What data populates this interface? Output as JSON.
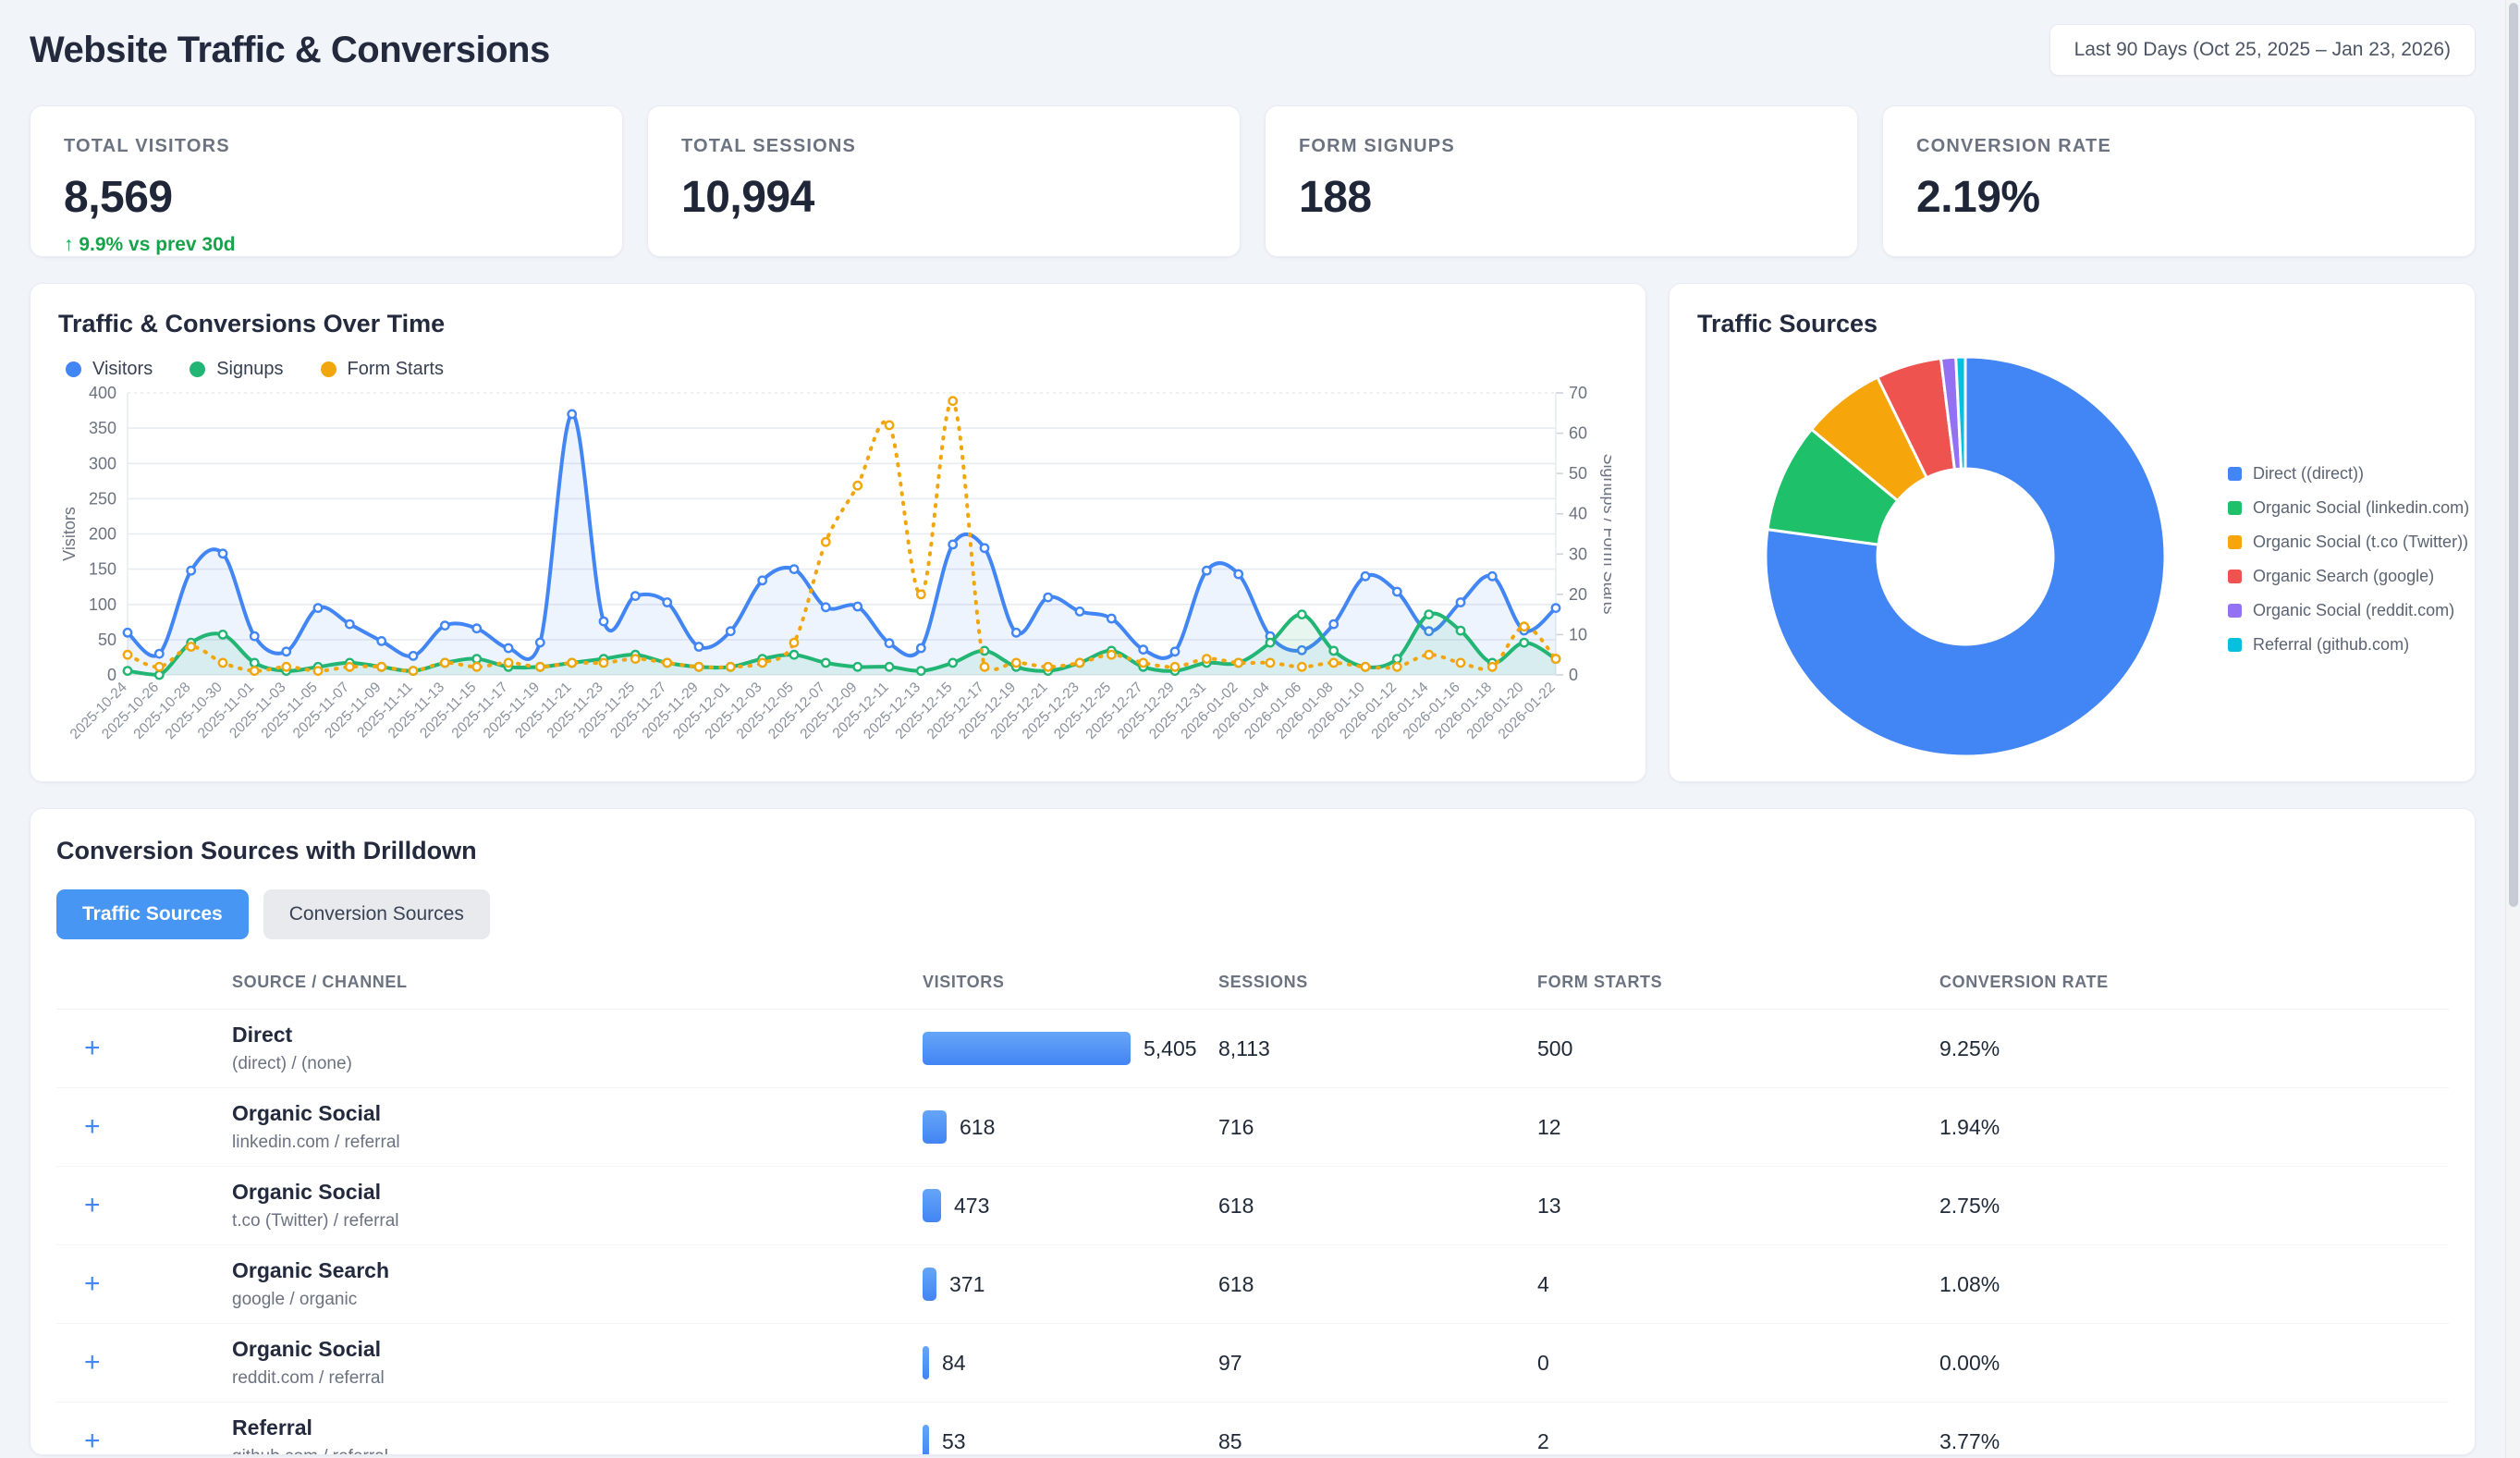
{
  "header": {
    "title": "Website Traffic & Conversions",
    "date_range": "Last 90 Days (Oct 25, 2025 – Jan 23, 2026)"
  },
  "kpis": [
    {
      "label": "TOTAL VISITORS",
      "value": "8,569",
      "delta": "↑ 9.9% vs prev 30d"
    },
    {
      "label": "TOTAL SESSIONS",
      "value": "10,994",
      "delta": ""
    },
    {
      "label": "FORM SIGNUPS",
      "value": "188",
      "delta": ""
    },
    {
      "label": "CONVERSION RATE",
      "value": "2.19%",
      "delta": ""
    }
  ],
  "chart_data": [
    {
      "type": "line",
      "title": "Traffic & Conversions Over Time",
      "ylabel_left": "Visitors",
      "ylabel_right": "Signups / Form Starts",
      "ylim_left": [
        0,
        400
      ],
      "ylim_right": [
        0,
        70
      ],
      "yticks_left": [
        0,
        50,
        100,
        150,
        200,
        250,
        300,
        350,
        400
      ],
      "yticks_right": [
        0,
        10,
        20,
        30,
        40,
        50,
        60,
        70
      ],
      "legend_position": "top",
      "grid": "horizontal",
      "x": [
        "2025-10-24",
        "2025-10-26",
        "2025-10-28",
        "2025-10-30",
        "2025-11-01",
        "2025-11-03",
        "2025-11-05",
        "2025-11-07",
        "2025-11-09",
        "2025-11-11",
        "2025-11-13",
        "2025-11-15",
        "2025-11-17",
        "2025-11-19",
        "2025-11-21",
        "2025-11-23",
        "2025-11-25",
        "2025-11-27",
        "2025-11-29",
        "2025-12-01",
        "2025-12-03",
        "2025-12-05",
        "2025-12-07",
        "2025-12-09",
        "2025-12-11",
        "2025-12-13",
        "2025-12-15",
        "2025-12-17",
        "2025-12-19",
        "2025-12-21",
        "2025-12-23",
        "2025-12-25",
        "2025-12-27",
        "2025-12-29",
        "2025-12-31",
        "2026-01-02",
        "2026-01-04",
        "2026-01-06",
        "2026-01-08",
        "2026-01-10",
        "2026-01-12",
        "2026-01-14",
        "2026-01-16",
        "2026-01-18",
        "2026-01-20",
        "2026-01-22"
      ],
      "series": [
        {
          "name": "Visitors",
          "axis": "left",
          "color": "#4285f4",
          "style": "solid",
          "values": [
            60,
            30,
            148,
            172,
            55,
            33,
            95,
            72,
            48,
            27,
            70,
            66,
            38,
            46,
            370,
            76,
            112,
            103,
            40,
            62,
            134,
            150,
            96,
            97,
            45,
            38,
            185,
            180,
            60,
            110,
            90,
            80,
            36,
            33,
            148,
            143,
            55,
            35,
            72,
            140,
            118,
            62,
            103,
            140,
            63,
            95
          ]
        },
        {
          "name": "Signups",
          "axis": "right",
          "color": "#22b573",
          "style": "solid",
          "values": [
            1,
            0,
            8,
            10,
            3,
            1,
            2,
            3,
            2,
            1,
            3,
            4,
            2,
            2,
            3,
            4,
            5,
            3,
            2,
            2,
            4,
            5,
            3,
            2,
            2,
            1,
            3,
            6,
            2,
            1,
            3,
            6,
            2,
            1,
            3,
            3,
            8,
            15,
            6,
            2,
            4,
            15,
            11,
            3,
            8,
            4
          ]
        },
        {
          "name": "Form Starts",
          "axis": "right",
          "color": "#f2a60d",
          "style": "dotted",
          "values": [
            5,
            2,
            7,
            3,
            1,
            2,
            1,
            2,
            2,
            1,
            3,
            2,
            3,
            2,
            3,
            3,
            4,
            3,
            2,
            2,
            3,
            8,
            33,
            47,
            62,
            20,
            68,
            2,
            3,
            2,
            3,
            5,
            3,
            2,
            4,
            3,
            3,
            2,
            3,
            2,
            2,
            5,
            3,
            2,
            12,
            4
          ]
        }
      ]
    },
    {
      "type": "pie",
      "title": "Traffic Sources",
      "labels": [
        "Direct ((direct))",
        "Organic Social (linkedin.com)",
        "Organic Social (t.co (Twitter))",
        "Organic Search (google)",
        "Organic Social (reddit.com)",
        "Referral (github.com)"
      ],
      "values": [
        5405,
        618,
        473,
        371,
        84,
        53
      ],
      "colors": [
        "#4285f4",
        "#1fc06a",
        "#f6a60b",
        "#ee5350",
        "#9470f2",
        "#06c0dd"
      ],
      "donut": true,
      "legend_position": "right"
    }
  ],
  "drilldown": {
    "title": "Conversion Sources with Drilldown",
    "tabs": [
      {
        "label": "Traffic Sources",
        "active": true
      },
      {
        "label": "Conversion Sources",
        "active": false
      }
    ],
    "table": {
      "headers": [
        "SOURCE / CHANNEL",
        "VISITORS",
        "SESSIONS",
        "FORM STARTS",
        "CONVERSION RATE"
      ],
      "rows": [
        {
          "expander": "+",
          "source": "Direct",
          "channel": "(direct) / (none)",
          "visitors": "5,405",
          "sessions": "8,113",
          "form_starts": "500",
          "conversion_rate": "9.25%"
        },
        {
          "expander": "+",
          "source": "Organic Social",
          "channel": "linkedin.com / referral",
          "visitors": "618",
          "sessions": "716",
          "form_starts": "12",
          "conversion_rate": "1.94%"
        },
        {
          "expander": "+",
          "source": "Organic Social",
          "channel": "t.co (Twitter) / referral",
          "visitors": "473",
          "sessions": "618",
          "form_starts": "13",
          "conversion_rate": "2.75%"
        },
        {
          "expander": "+",
          "source": "Organic Search",
          "channel": "google / organic",
          "visitors": "371",
          "sessions": "618",
          "form_starts": "4",
          "conversion_rate": "1.08%"
        },
        {
          "expander": "+",
          "source": "Organic Social",
          "channel": "reddit.com / referral",
          "visitors": "84",
          "sessions": "97",
          "form_starts": "0",
          "conversion_rate": "0.00%"
        },
        {
          "expander": "+",
          "source": "Referral",
          "channel": "github.com / referral",
          "visitors": "53",
          "sessions": "85",
          "form_starts": "2",
          "conversion_rate": "3.77%"
        }
      ]
    }
  }
}
